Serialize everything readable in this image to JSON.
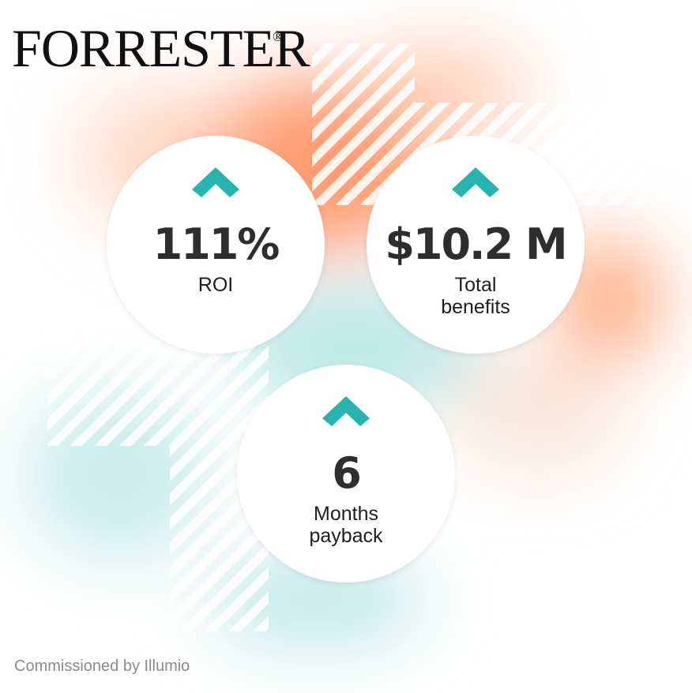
{
  "header": {
    "logo": "FORRESTER",
    "logo_mark": "®"
  },
  "stats": [
    {
      "value": "111%",
      "label_lines": [
        "ROI"
      ]
    },
    {
      "value": "$10.2 M",
      "label_lines": [
        "Total",
        "benefits"
      ]
    },
    {
      "value": "6",
      "label_lines": [
        "Months",
        "payback"
      ]
    }
  ],
  "footer": {
    "text": "Commissioned by Illumio"
  }
}
